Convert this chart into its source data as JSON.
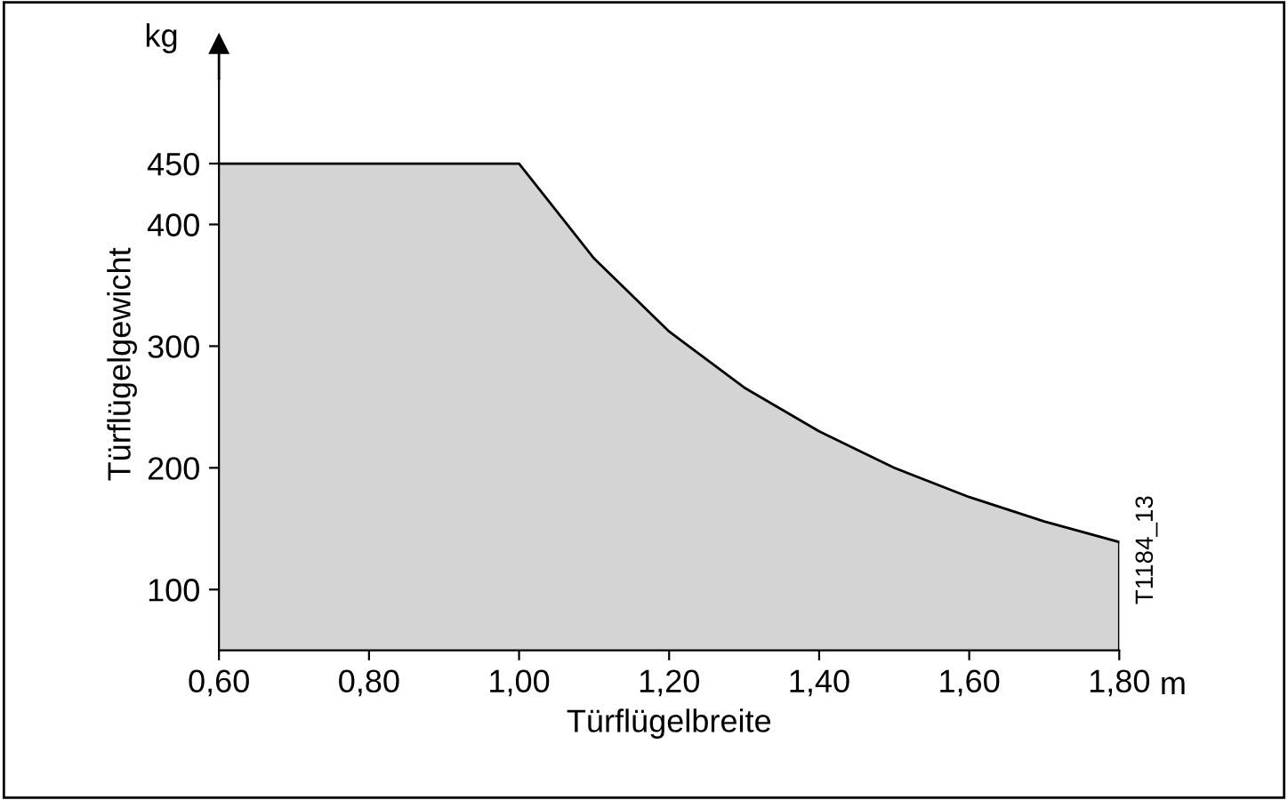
{
  "chart_data": {
    "type": "area",
    "xlabel": "Türflügelbreite",
    "ylabel": "Türflügelgewicht",
    "x": [
      0.6,
      1.0,
      1.1,
      1.2,
      1.3,
      1.4,
      1.5,
      1.6,
      1.7,
      1.8
    ],
    "series": [
      {
        "color": "#d4d4d4",
        "values": [
          450,
          450,
          372,
          312,
          266,
          230,
          200,
          176,
          156,
          139
        ]
      }
    ],
    "xlim": [
      0.6,
      1.8
    ],
    "ylim": [
      50,
      520
    ],
    "xticks": [
      {
        "value": 0.6,
        "label": "0,60"
      },
      {
        "value": 0.8,
        "label": "0,80"
      },
      {
        "value": 1.0,
        "label": "1,00"
      },
      {
        "value": 1.2,
        "label": "1,20"
      },
      {
        "value": 1.4,
        "label": "1,40"
      },
      {
        "value": 1.6,
        "label": "1,60"
      },
      {
        "value": 1.8,
        "label": "1,80"
      }
    ],
    "yticks": [
      100,
      200,
      300,
      400,
      450
    ],
    "annotations": [
      "kg",
      "m",
      "T1184_13"
    ],
    "grid": false,
    "legend": false
  }
}
